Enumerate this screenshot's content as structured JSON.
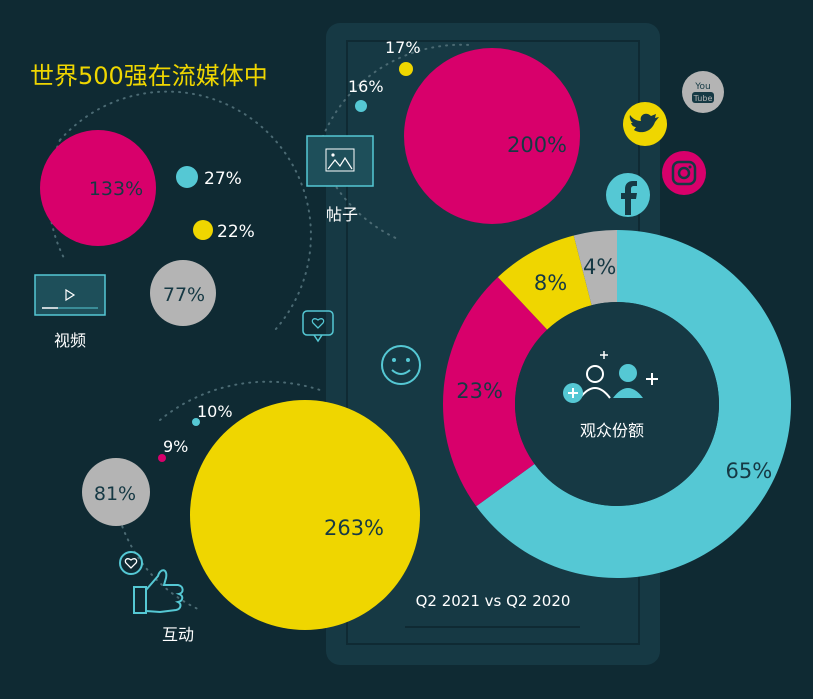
{
  "title": "世界500强在流媒体中",
  "colors": {
    "background": "#0f2a33",
    "panel": "#163944",
    "magenta": "#d8006b",
    "yellow": "#efd600",
    "cyan": "#55c8d4",
    "gray": "#b4b4b4",
    "title": "#efd600",
    "text": "#ffffff"
  },
  "groups": {
    "video": {
      "label": "视频",
      "icon": "video-player-icon"
    },
    "posts": {
      "label": "帖子",
      "icon": "image-post-icon"
    },
    "interaction": {
      "label": "互动",
      "icon": "thumbs-up-icon"
    }
  },
  "donut": {
    "center_label": "观众份额",
    "caption": "Q2 2021 vs Q2 2020",
    "icon": "audience-users-icon"
  },
  "social_icons": [
    "youtube-icon",
    "twitter-icon",
    "instagram-icon",
    "facebook-icon"
  ],
  "chart_data": [
    {
      "type": "bubble",
      "group": "视频",
      "series": [
        {
          "color": "#d8006b",
          "value": 133,
          "label": "133%"
        },
        {
          "color": "#b4b4b4",
          "value": 77,
          "label": "77%"
        },
        {
          "color": "#55c8d4",
          "value": 27,
          "label": "27%"
        },
        {
          "color": "#efd600",
          "value": 22,
          "label": "22%"
        }
      ]
    },
    {
      "type": "bubble",
      "group": "帖子",
      "series": [
        {
          "color": "#d8006b",
          "value": 200,
          "label": "200%"
        },
        {
          "color": "#efd600",
          "value": 17,
          "label": "17%"
        },
        {
          "color": "#55c8d4",
          "value": 16,
          "label": "16%"
        }
      ]
    },
    {
      "type": "bubble",
      "group": "互动",
      "series": [
        {
          "color": "#efd600",
          "value": 263,
          "label": "263%"
        },
        {
          "color": "#b4b4b4",
          "value": 81,
          "label": "81%"
        },
        {
          "color": "#55c8d4",
          "value": 10,
          "label": "10%"
        },
        {
          "color": "#d8006b",
          "value": 9,
          "label": "9%"
        }
      ]
    },
    {
      "type": "pie",
      "title": "观众份额",
      "caption": "Q2 2021 vs Q2 2020",
      "slices": [
        {
          "color": "#55c8d4",
          "value": 65,
          "label": "65%"
        },
        {
          "color": "#d8006b",
          "value": 23,
          "label": "23%"
        },
        {
          "color": "#efd600",
          "value": 8,
          "label": "8%"
        },
        {
          "color": "#b4b4b4",
          "value": 4,
          "label": "4%"
        }
      ]
    }
  ]
}
